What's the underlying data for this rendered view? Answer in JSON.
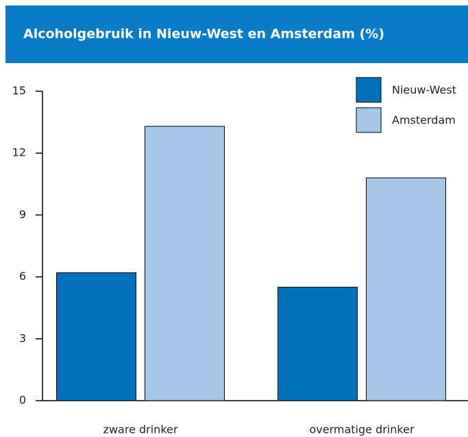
{
  "chart_data": {
    "type": "bar",
    "title": "Alcoholgebruik in Nieuw-West en Amsterdam (%)",
    "categories": [
      "zware drinker",
      "overmatige drinker"
    ],
    "series": [
      {
        "name": "Nieuw-West",
        "color": "#0072bc",
        "values": [
          6.2,
          5.5
        ]
      },
      {
        "name": "Amsterdam",
        "color": "#a6c8e8",
        "values": [
          13.3,
          10.8
        ]
      }
    ],
    "ylim": [
      0,
      15
    ],
    "yticks": [
      0,
      3,
      6,
      9,
      12,
      15
    ],
    "grid": false,
    "legend": "upper right"
  }
}
